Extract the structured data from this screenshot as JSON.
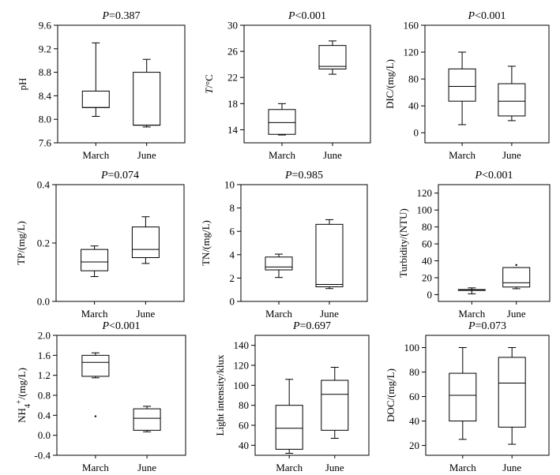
{
  "chart_data": [
    {
      "type": "box",
      "title_p": "P",
      "title_rest": "=0.387",
      "ylabel": "pH",
      "categories": [
        "March",
        "June"
      ],
      "ylim": [
        7.6,
        9.6
      ],
      "yticks": [
        "9.6",
        "9.2",
        "8.8",
        "8.4",
        "8.0",
        "7.6"
      ],
      "ytick_values": [
        9.6,
        9.2,
        8.8,
        8.4,
        8.0,
        7.6
      ],
      "boxes": [
        {
          "min": 8.05,
          "q1": 8.2,
          "median": 8.2,
          "q3": 8.48,
          "max": 9.3
        },
        {
          "min": 7.87,
          "q1": 7.9,
          "median": 7.9,
          "q3": 8.8,
          "max": 9.02
        }
      ],
      "outliers": []
    },
    {
      "type": "box",
      "title_p": "P",
      "title_rest": "<0.001",
      "ylabel": "T/°C",
      "categories": [
        "March",
        "June"
      ],
      "ylim": [
        12,
        30
      ],
      "yticks": [
        "30",
        "26",
        "22",
        "18",
        "14"
      ],
      "ytick_values": [
        30,
        26,
        22,
        18,
        14
      ],
      "boxes": [
        {
          "min": 13.2,
          "q1": 13.3,
          "median": 15.1,
          "q3": 17.1,
          "max": 18.0
        },
        {
          "min": 22.5,
          "q1": 23.3,
          "median": 23.7,
          "q3": 26.9,
          "max": 27.6
        }
      ],
      "outliers": []
    },
    {
      "type": "box",
      "title_p": "P",
      "title_rest": "<0.001",
      "ylabel": "DIC/(mg/L)",
      "categories": [
        "March",
        "June"
      ],
      "ylim": [
        -15,
        160
      ],
      "yticks": [
        "160",
        "120",
        "80",
        "40",
        "0"
      ],
      "ytick_values": [
        160,
        120,
        80,
        40,
        0
      ],
      "boxes": [
        {
          "min": 12,
          "q1": 47,
          "median": 69,
          "q3": 95,
          "max": 120
        },
        {
          "min": 18,
          "q1": 25,
          "median": 47,
          "q3": 73,
          "max": 99
        }
      ],
      "outliers": []
    },
    {
      "type": "box",
      "title_p": "P",
      "title_rest": "=0.074",
      "ylabel": "TP/(mg/L)",
      "categories": [
        "March",
        "June"
      ],
      "ylim": [
        0.0,
        0.4
      ],
      "yticks": [
        "0.4",
        "0.2",
        "0.0"
      ],
      "ytick_values": [
        0.4,
        0.2,
        0.0
      ],
      "boxes": [
        {
          "min": 0.085,
          "q1": 0.105,
          "median": 0.135,
          "q3": 0.178,
          "max": 0.19
        },
        {
          "min": 0.13,
          "q1": 0.15,
          "median": 0.178,
          "q3": 0.255,
          "max": 0.29
        }
      ],
      "outliers": []
    },
    {
      "type": "box",
      "title_p": "P",
      "title_rest": "=0.985",
      "ylabel": "TN/(mg/L)",
      "categories": [
        "March",
        "June"
      ],
      "ylim": [
        0,
        10
      ],
      "yticks": [
        "10",
        "8",
        "6",
        "4",
        "2",
        "0"
      ],
      "ytick_values": [
        10,
        8,
        6,
        4,
        2,
        0
      ],
      "boxes": [
        {
          "min": 2.05,
          "q1": 2.7,
          "median": 2.95,
          "q3": 3.8,
          "max": 4.05
        },
        {
          "min": 1.1,
          "q1": 1.25,
          "median": 1.45,
          "q3": 6.6,
          "max": 7.0
        }
      ],
      "outliers": []
    },
    {
      "type": "box",
      "title_p": "P",
      "title_rest": "<0.001",
      "ylabel": "Turbidity/(NTU)",
      "categories": [
        "March",
        "June"
      ],
      "ylim": [
        -8,
        130
      ],
      "yticks": [
        "120",
        "100",
        "80",
        "60",
        "40",
        "20",
        "0"
      ],
      "ytick_values": [
        120,
        100,
        80,
        60,
        40,
        20,
        0
      ],
      "boxes": [
        {
          "min": 1,
          "q1": 5,
          "median": 5,
          "q3": 6,
          "max": 8
        },
        {
          "min": 7,
          "q1": 9,
          "median": 14,
          "q3": 32,
          "max": 32
        }
      ],
      "outliers": [
        {
          "category": 1,
          "value": 35
        }
      ]
    },
    {
      "type": "box",
      "title_p": "P",
      "title_rest": "<0.001",
      "ylabel_main": "NH",
      "ylabel_sub": "4",
      "ylabel_sup": "+",
      "ylabel_rest": "/(mg/L)",
      "categories": [
        "March",
        "June"
      ],
      "ylim": [
        -0.4,
        2.0
      ],
      "yticks": [
        "2.0",
        "1.6",
        "1.2",
        "0.8",
        "0.4",
        "0.0",
        "-0.4"
      ],
      "ytick_values": [
        2.0,
        1.6,
        1.2,
        0.8,
        0.4,
        0.0,
        -0.4
      ],
      "boxes": [
        {
          "min": 1.15,
          "q1": 1.18,
          "median": 1.46,
          "q3": 1.6,
          "max": 1.65
        },
        {
          "min": 0.07,
          "q1": 0.1,
          "median": 0.34,
          "q3": 0.53,
          "max": 0.58
        }
      ],
      "outliers": [
        {
          "category": 0,
          "value": 0.38
        }
      ]
    },
    {
      "type": "box",
      "title_p": "P",
      "title_rest": "=0.697",
      "ylabel": "Light intensity/klux",
      "categories": [
        "March",
        "June"
      ],
      "ylim": [
        30,
        150
      ],
      "yticks": [
        "140",
        "120",
        "100",
        "80",
        "60",
        "40"
      ],
      "ytick_values": [
        140,
        120,
        100,
        80,
        60,
        40
      ],
      "boxes": [
        {
          "min": 32,
          "q1": 36,
          "median": 57,
          "q3": 80,
          "max": 106
        },
        {
          "min": 47,
          "q1": 55,
          "median": 91,
          "q3": 105,
          "max": 118
        }
      ],
      "outliers": []
    },
    {
      "type": "box",
      "title_p": "P",
      "title_rest": "=0.073",
      "ylabel": "DOC/(mg/L)",
      "categories": [
        "March",
        "June"
      ],
      "ylim": [
        12,
        110
      ],
      "yticks": [
        "100",
        "80",
        "60",
        "40",
        "20"
      ],
      "ytick_values": [
        100,
        80,
        60,
        40,
        20
      ],
      "boxes": [
        {
          "min": 25,
          "q1": 40,
          "median": 61,
          "q3": 79,
          "max": 100
        },
        {
          "min": 21,
          "q1": 35,
          "median": 71,
          "q3": 92,
          "max": 100
        }
      ],
      "outliers": []
    }
  ]
}
